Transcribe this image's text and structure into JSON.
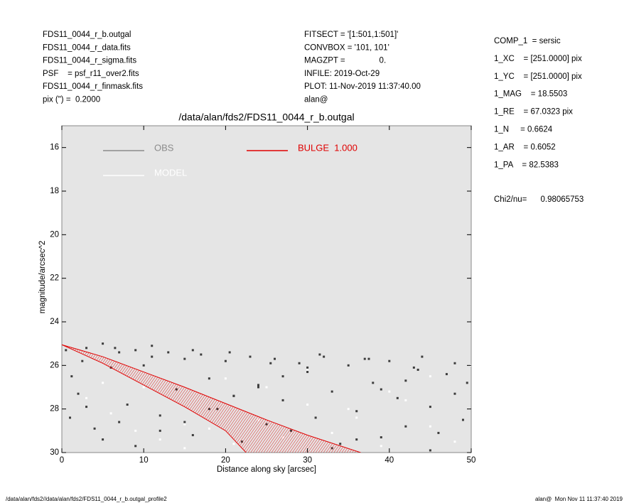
{
  "header": {
    "left": [
      "FDS11_0044_r_b.outgal",
      "FDS11_0044_r_data.fits",
      "FDS11_0044_r_sigma.fits",
      "PSF    = psf_r11_over2.fits",
      "FDS11_0044_r_finmask.fits",
      "pix (\") =  0.2000"
    ],
    "middle": [
      "FITSECT = '[1:501,1:501]'",
      "CONVBOX = '101, 101'",
      "MAGZPT =               0.",
      "INFILE: 2019-Oct-29",
      "PLOT: 11-Nov-2019 11:37:40.00",
      "alan@"
    ],
    "right": [
      "COMP_1  = sersic",
      "1_XC    = [251.0000] pix",
      "1_YC    = [251.0000] pix",
      "1_MAG    = 18.5503",
      "1_RE    = 67.0323 pix",
      "1_N     = 0.6624",
      "1_AR    = 0.6052",
      "1_PA    = 82.5383"
    ],
    "chi2": "Chi2/nu=      0.98065753"
  },
  "footer": {
    "left": "/data/alan/fds2//data/alan/fds2/FDS11_0044_r_b.outgal_profile2",
    "right": "alan@  Mon Nov 11 11:37:40 2019"
  },
  "chart_data": {
    "type": "scatter",
    "title": "/data/alan/fds2/FDS11_0044_r_b.outgal",
    "xlabel": "Distance along sky [arcsec]",
    "ylabel": "magnitude/arcsec^2",
    "xlim": [
      0,
      50
    ],
    "ylim": [
      15,
      30
    ],
    "y_inverted": true,
    "xticks": [
      0,
      10,
      20,
      30,
      40,
      50
    ],
    "yticks": [
      16,
      18,
      20,
      22,
      24,
      26,
      28,
      30
    ],
    "background": "#e5e5e5",
    "series": [
      {
        "name": "OBS",
        "color": "#3c3c3c",
        "legend_color": "#8c8c8c",
        "x": [
          0.5,
          1.2,
          2,
          3,
          4,
          5,
          6,
          7,
          8,
          9,
          10,
          11,
          12,
          13,
          14,
          15,
          16,
          17,
          18,
          19,
          20,
          21,
          22,
          23,
          24,
          25,
          26,
          27,
          28,
          29,
          30,
          31,
          32,
          33,
          34,
          35,
          36,
          37,
          38,
          39,
          40,
          41,
          42,
          43,
          44,
          45,
          46,
          47,
          48,
          49,
          1,
          3,
          5,
          7,
          9,
          12,
          15,
          18,
          21,
          24,
          27,
          30,
          33,
          36,
          39,
          42,
          45,
          48,
          2.5,
          6.5,
          11,
          16,
          20.5,
          25.5,
          31.5,
          37.5,
          43.5,
          49.5
        ],
        "values": [
          25.3,
          26.5,
          27.3,
          25.2,
          28.9,
          25.0,
          26.1,
          25.4,
          27.8,
          25.3,
          26.0,
          25.6,
          28.3,
          25.4,
          27.1,
          25.7,
          29.2,
          25.5,
          26.6,
          28.0,
          25.8,
          27.4,
          29.5,
          25.6,
          26.9,
          28.7,
          25.7,
          27.6,
          29.0,
          25.9,
          26.3,
          28.4,
          25.6,
          27.2,
          29.6,
          26.0,
          28.1,
          25.7,
          26.8,
          29.3,
          25.8,
          27.5,
          28.8,
          26.1,
          25.6,
          27.9,
          29.1,
          26.4,
          25.9,
          28.5,
          28.4,
          27.9,
          29.4,
          28.6,
          29.7,
          29.0,
          28.6,
          28.0,
          27.4,
          27.0,
          26.5,
          26.1,
          29.8,
          29.4,
          27.1,
          26.7,
          29.9,
          27.3,
          25.8,
          25.2,
          25.1,
          25.3,
          25.4,
          25.9,
          25.5,
          25.7,
          26.2,
          26.8
        ]
      },
      {
        "name": "MODEL",
        "color": "#ffffff",
        "legend_color": "#ffffff",
        "x": [
          3,
          6,
          9,
          12,
          15,
          18,
          21,
          24,
          27,
          30,
          33,
          36,
          39,
          42,
          45,
          48,
          10,
          20,
          30,
          40,
          50,
          5,
          25,
          35,
          45,
          15
        ],
        "values": [
          27.5,
          28.2,
          29.0,
          29.4,
          29.8,
          28.9,
          29.6,
          28.5,
          29.3,
          27.8,
          29.1,
          28.4,
          29.7,
          27.6,
          28.8,
          29.5,
          27.0,
          26.6,
          26.2,
          27.2,
          26.0,
          26.8,
          27.0,
          28.0,
          26.5,
          28.7
        ]
      },
      {
        "name": "BULGE  1.000",
        "color": "#e00000",
        "legend_color": "#e00000",
        "lines": [
          {
            "x": [
              0,
              5,
              10,
              15,
              20,
              25,
              30,
              36.5
            ],
            "values": [
              25.05,
              25.6,
              26.3,
              27.0,
              27.75,
              28.5,
              29.2,
              30.0
            ]
          },
          {
            "x": [
              0,
              5,
              10,
              15,
              20,
              22.5
            ],
            "values": [
              25.05,
              25.9,
              26.9,
              27.9,
              29.0,
              30.0
            ]
          }
        ]
      }
    ]
  }
}
